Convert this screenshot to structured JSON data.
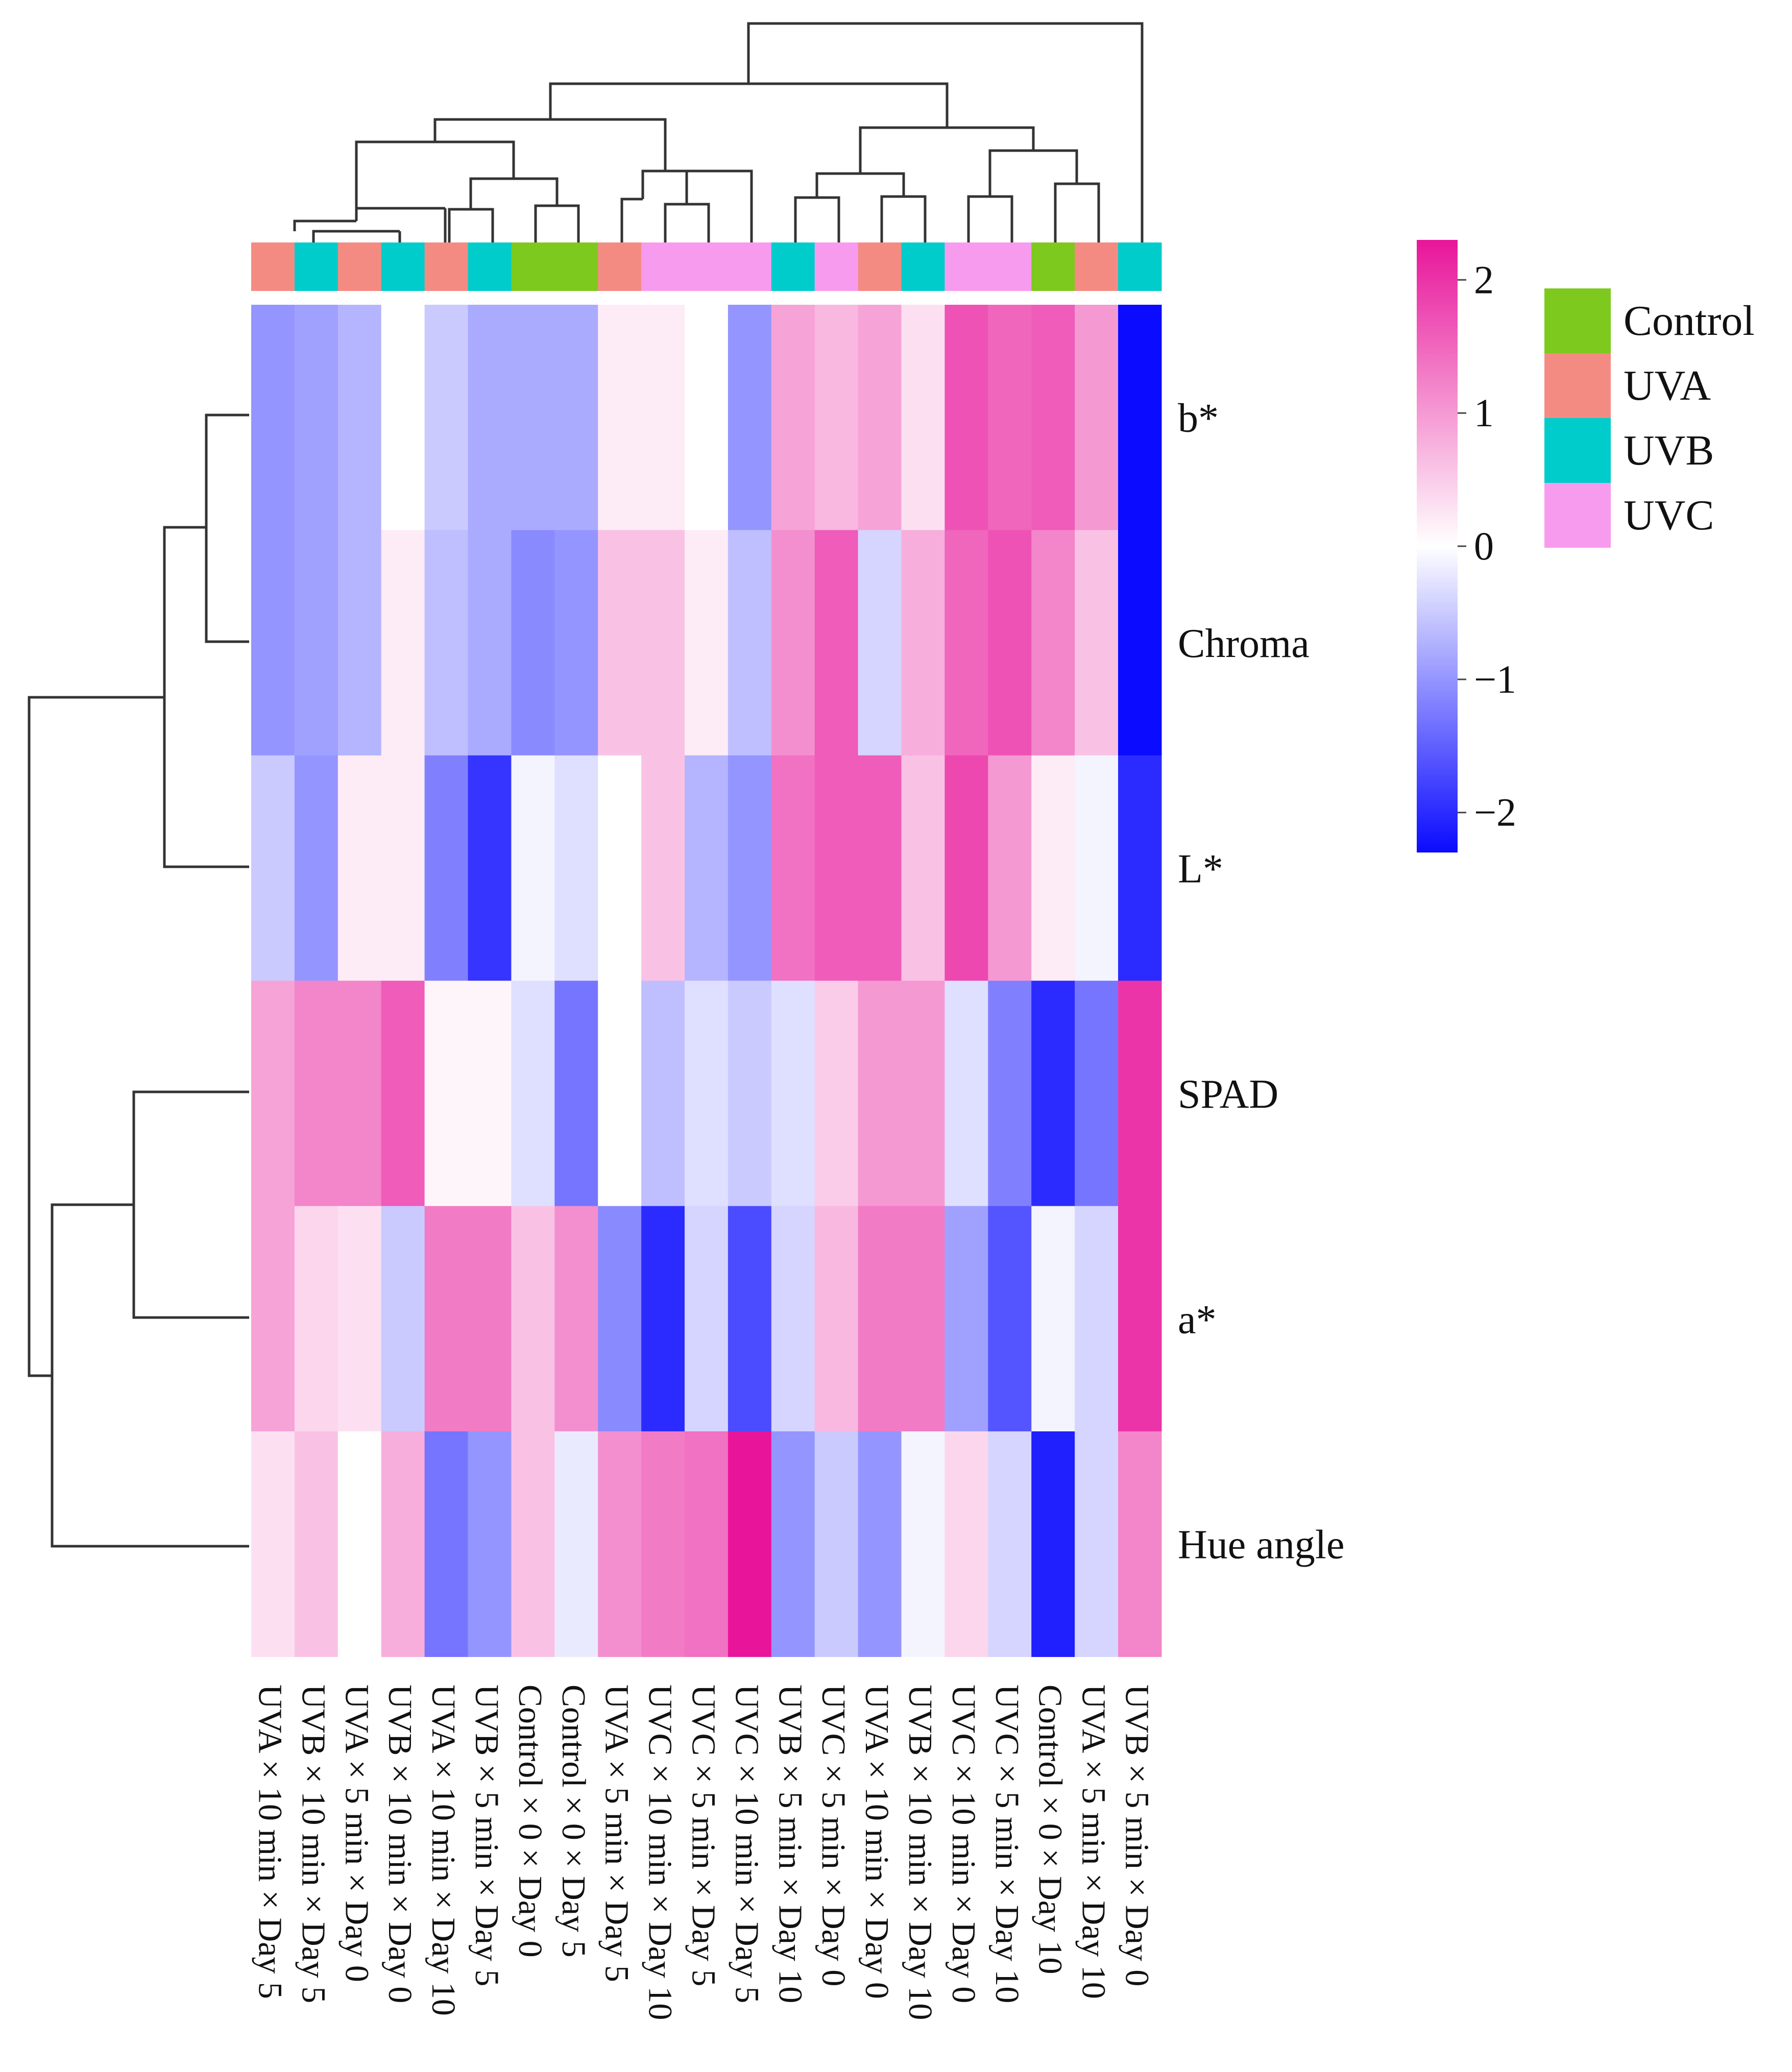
{
  "chart_data": {
    "type": "heatmap",
    "title": "",
    "columns": [
      "UVA × 10 min × Day 5",
      "UVB × 10 min × Day 5",
      "UVA × 5 min × Day 0",
      "UVB × 10 min × Day 0",
      "UVA × 10 min × Day 10",
      "UVB × 5 min × Day 5",
      "Control × 0 × Day 0",
      "Control × 0 × Day 5",
      "UVA × 5 min × Day 5",
      "UVC × 10 min × Day 10",
      "UVC × 5 min × Day 5",
      "UVC × 10 min × Day 5",
      "UVB × 5 min × Day 10",
      "UVC × 5 min × Day 0",
      "UVA × 10 min × Day 0",
      "UVB × 10 min × Day 10",
      "UVC × 10 min × Day 0",
      "UVC × 5 min × Day 10",
      "Control × 0 × Day 10",
      "UVA × 5 min × Day 10",
      "UVB × 5 min × Day 0"
    ],
    "column_groups": [
      "UVA",
      "UVB",
      "UVA",
      "UVB",
      "UVA",
      "UVB",
      "Control",
      "Control",
      "UVA",
      "UVC",
      "UVC",
      "UVC",
      "UVB",
      "UVC",
      "UVA",
      "UVB",
      "UVC",
      "UVC",
      "Control",
      "UVA",
      "UVB"
    ],
    "rows": [
      "b*",
      "Chroma",
      "L*",
      "SPAD",
      "a*",
      "Hue  angle"
    ],
    "values": [
      [
        -1.0,
        -0.9,
        -0.7,
        0.0,
        -0.5,
        -0.8,
        -0.8,
        -0.8,
        0.2,
        0.2,
        0.0,
        -1.0,
        0.9,
        0.7,
        0.9,
        0.3,
        1.7,
        1.5,
        1.6,
        1.0,
        -2.3
      ],
      [
        -1.0,
        -0.9,
        -0.7,
        0.2,
        -0.6,
        -0.8,
        -1.1,
        -1.0,
        0.6,
        0.6,
        0.2,
        -0.6,
        1.1,
        1.6,
        -0.4,
        0.8,
        1.5,
        1.7,
        1.2,
        0.6,
        -2.3
      ],
      [
        -0.5,
        -1.0,
        0.2,
        0.2,
        -1.2,
        -1.9,
        -0.1,
        -0.3,
        0.0,
        0.6,
        -0.7,
        -1.0,
        1.4,
        1.6,
        1.6,
        0.6,
        1.8,
        1.0,
        0.2,
        -0.1,
        -2.0
      ],
      [
        0.9,
        1.2,
        1.2,
        1.6,
        0.1,
        0.1,
        -0.3,
        -1.3,
        0.0,
        -0.6,
        -0.3,
        -0.5,
        -0.3,
        0.5,
        1.0,
        1.0,
        -0.3,
        -1.2,
        -2.0,
        -1.3,
        2.0
      ],
      [
        0.9,
        0.4,
        0.3,
        -0.5,
        1.3,
        1.3,
        0.6,
        1.1,
        -1.1,
        -2.0,
        -0.4,
        -1.7,
        -0.4,
        0.7,
        1.3,
        1.3,
        -0.9,
        -1.6,
        -0.1,
        -0.4,
        2.0
      ],
      [
        0.3,
        0.6,
        0.0,
        0.8,
        -1.3,
        -1.0,
        0.6,
        -0.2,
        1.1,
        1.3,
        1.4,
        2.3,
        -1.0,
        -0.5,
        -1.0,
        -0.1,
        0.4,
        -0.4,
        -2.1,
        -0.4,
        1.2
      ]
    ],
    "legend": {
      "colorbar_ticks": [
        "2",
        "1",
        "0",
        "−1",
        "−2"
      ],
      "colorbar_range": [
        -2.3,
        2.3
      ],
      "groups": [
        {
          "label": "Control",
          "color": "#7dc91d"
        },
        {
          "label": "UVA",
          "color": "#f48b82"
        },
        {
          "label": "UVB",
          "color": "#00cccc"
        },
        {
          "label": "UVC",
          "color": "#f79bef"
        }
      ]
    },
    "colors": {
      "low": "#0b0bff",
      "mid": "#ffffff",
      "high": "#e8159a"
    },
    "column_dendrogram": true,
    "row_dendrogram": true
  }
}
